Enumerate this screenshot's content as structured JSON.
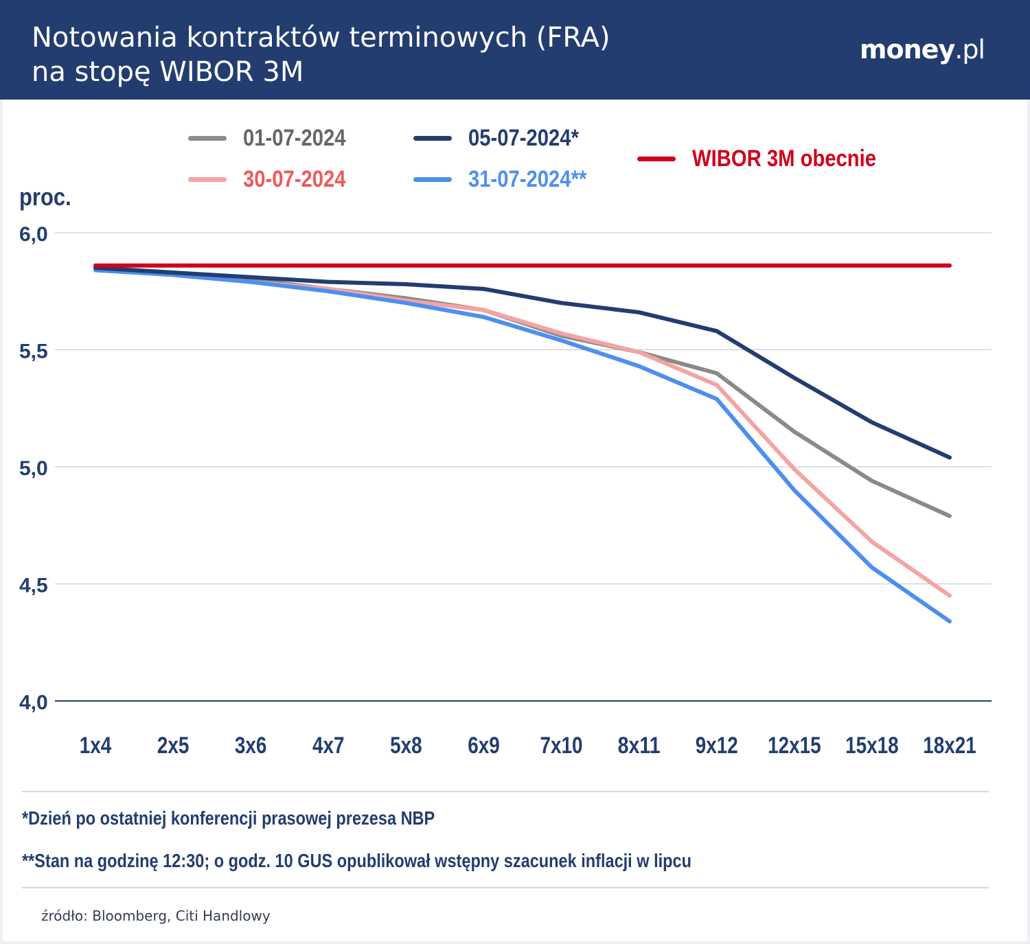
{
  "header": {
    "title_line1": "Notowania kontraktów terminowych (FRA)",
    "title_line2": "na stopę WIBOR 3M",
    "brand_main": "money",
    "brand_suffix": ".pl"
  },
  "colors": {
    "header_bg": "#233d70",
    "gray": "#8a8a8a",
    "navy": "#233d70",
    "pink": "#f5a3a3",
    "blue": "#4d8ff0",
    "red": "#d0021b",
    "pink_text": "#ef5a5a",
    "gray_text": "#666666"
  },
  "chart_data": {
    "type": "line",
    "title": "Notowania kontraktów terminowych (FRA) na stopę WIBOR 3M",
    "ylabel": "proc.",
    "xlabel": "",
    "ylim": [
      4.0,
      6.0
    ],
    "yticks": [
      "6,0",
      "5,5",
      "5,0",
      "4,5",
      "4,0"
    ],
    "ytick_values": [
      6.0,
      5.5,
      5.0,
      4.5,
      4.0
    ],
    "categories": [
      "1x4",
      "2x5",
      "3x6",
      "4x7",
      "5x8",
      "6x9",
      "7x10",
      "8x11",
      "9x12",
      "12x15",
      "15x18",
      "18x21"
    ],
    "series": [
      {
        "name": "01-07-2024",
        "color": "#8a8a8a",
        "text_color": "#666666",
        "values": [
          5.85,
          5.83,
          5.8,
          5.76,
          5.72,
          5.67,
          5.56,
          5.49,
          5.4,
          5.15,
          4.94,
          4.79
        ]
      },
      {
        "name": "05-07-2024*",
        "color": "#233d70",
        "text_color": "#233d70",
        "values": [
          5.85,
          5.83,
          5.81,
          5.79,
          5.78,
          5.76,
          5.7,
          5.66,
          5.58,
          5.38,
          5.19,
          5.04
        ]
      },
      {
        "name": "30-07-2024",
        "color": "#f5a3a3",
        "text_color": "#ef5a5a",
        "values": [
          5.84,
          5.82,
          5.79,
          5.76,
          5.71,
          5.67,
          5.57,
          5.49,
          5.35,
          4.99,
          4.68,
          4.45
        ]
      },
      {
        "name": "31-07-2024**",
        "color": "#4d8ff0",
        "text_color": "#4d8ff0",
        "values": [
          5.84,
          5.82,
          5.79,
          5.75,
          5.7,
          5.64,
          5.54,
          5.43,
          5.29,
          4.9,
          4.57,
          4.34
        ]
      },
      {
        "name": "WIBOR 3M obecnie",
        "color": "#d0021b",
        "text_color": "#d0021b",
        "values": [
          5.86,
          5.86,
          5.86,
          5.86,
          5.86,
          5.86,
          5.86,
          5.86,
          5.86,
          5.86,
          5.86,
          5.86
        ]
      }
    ],
    "grid": true,
    "legend": "top"
  },
  "notes": {
    "note1": "*Dzień po ostatniej konferencji prasowej prezesa NBP",
    "note2": "**Stan na godzinę 12:30; o godz. 10 GUS opublikował wstępny szacunek inflacji w lipcu"
  },
  "source": "źródło: Bloomberg, Citi Handlowy"
}
